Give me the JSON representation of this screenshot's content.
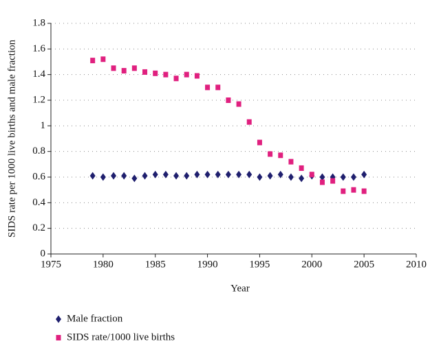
{
  "chart_data": {
    "type": "scatter",
    "x_label": "Year",
    "y_label": "SIDS rate per 1000 live births and male fraction",
    "xlim": [
      1975,
      2010
    ],
    "xticks": [
      1975,
      1980,
      1985,
      1990,
      1995,
      2000,
      2005,
      2010
    ],
    "ylim": [
      0,
      1.8
    ],
    "yticks": [
      0,
      0.2,
      0.4,
      0.6,
      0.8,
      1,
      1.2,
      1.4,
      1.6,
      1.8
    ],
    "grid": true,
    "legend": "bottom",
    "x": [
      1979,
      1980,
      1981,
      1982,
      1983,
      1984,
      1985,
      1986,
      1987,
      1988,
      1989,
      1990,
      1991,
      1992,
      1993,
      1994,
      1995,
      1996,
      1997,
      1998,
      1999,
      2000,
      2001,
      2002,
      2003,
      2004,
      2005
    ],
    "series": [
      {
        "name": "Male fraction",
        "color": "#1f1f6e",
        "marker": "diamond",
        "values": [
          0.61,
          0.6,
          0.61,
          0.61,
          0.59,
          0.61,
          0.62,
          0.62,
          0.61,
          0.61,
          0.62,
          0.62,
          0.62,
          0.62,
          0.62,
          0.62,
          0.6,
          0.61,
          0.62,
          0.6,
          0.59,
          0.61,
          0.6,
          0.6,
          0.6,
          0.6,
          0.62
        ]
      },
      {
        "name": "SIDS rate/1000 live births",
        "color": "#e0207f",
        "marker": "square",
        "values": [
          1.51,
          1.52,
          1.45,
          1.43,
          1.45,
          1.42,
          1.41,
          1.4,
          1.37,
          1.4,
          1.39,
          1.3,
          1.3,
          1.2,
          1.17,
          1.03,
          0.87,
          0.78,
          0.77,
          0.72,
          0.67,
          0.62,
          0.56,
          0.57,
          0.49,
          0.5,
          0.49
        ]
      }
    ]
  }
}
